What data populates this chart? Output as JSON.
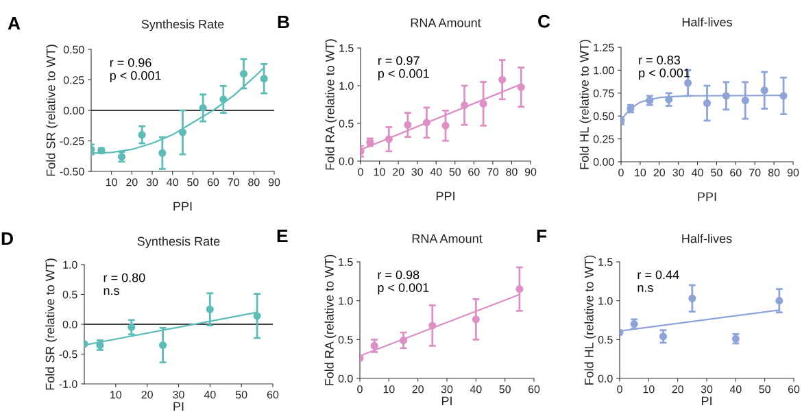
{
  "chart_data": [
    {
      "type": "scatter",
      "title": "Synthesis Rate",
      "xlabel": "PPI",
      "ylabel": "Fold SR (relative to WT)",
      "annotations": [
        "A",
        "r = 0.96",
        "p < 0.001"
      ],
      "grid": false,
      "xlim": [
        0,
        90
      ],
      "xticks": [
        10,
        20,
        30,
        40,
        50,
        60,
        70,
        80,
        90
      ],
      "ylim": [
        -0.5,
        0.5
      ],
      "yticks": [
        {
          "value": -0.5,
          "label": "-0.50"
        },
        {
          "value": -0.25,
          "label": "-0.25"
        },
        {
          "value": 0,
          "label": "0.00"
        },
        {
          "value": 0.25,
          "label": "0.25"
        },
        {
          "value": 0.5,
          "label": "0.50"
        }
      ],
      "ref_lines": [
        {
          "axis": "y",
          "value": 0,
          "color": "#000000"
        }
      ],
      "series": [
        {
          "marker": "circle",
          "color": "#5bbcb8",
          "x": [
            0,
            5,
            15,
            25,
            35,
            45,
            55,
            65,
            75,
            85
          ],
          "values": [
            -0.32,
            -0.33,
            -0.38,
            -0.2,
            -0.35,
            -0.18,
            0.02,
            0.09,
            0.3,
            0.26
          ],
          "errors": [
            0.04,
            0.02,
            0.04,
            0.07,
            0.13,
            0.18,
            0.11,
            0.11,
            0.12,
            0.12
          ]
        },
        {
          "type": "line",
          "color": "#5bbcb8",
          "line_style": "solid",
          "x": [
            0,
            10,
            20,
            30,
            40,
            50,
            60,
            70,
            80,
            85
          ],
          "values": [
            -0.35,
            -0.345,
            -0.32,
            -0.27,
            -0.2,
            -0.1,
            0.0,
            0.12,
            0.27,
            0.35
          ]
        }
      ]
    },
    {
      "type": "scatter",
      "title": "RNA Amount",
      "xlabel": "PPI",
      "ylabel": "Fold RA (relative to WT)",
      "annotations": [
        "B",
        "r = 0.97",
        "p < 0.001"
      ],
      "grid": false,
      "xlim": [
        0,
        90
      ],
      "xticks": [
        0,
        10,
        20,
        30,
        40,
        50,
        60,
        70,
        80,
        90
      ],
      "ylim": [
        0,
        1.5
      ],
      "yticks": [
        {
          "value": 0,
          "label": "0.0"
        },
        0.5,
        {
          "value": 1,
          "label": "1.0"
        },
        1.5
      ],
      "series": [
        {
          "marker": "circle",
          "color": "#dd8fc6",
          "x": [
            0,
            5,
            15,
            25,
            35,
            45,
            55,
            65,
            75,
            85
          ],
          "values": [
            0.13,
            0.25,
            0.29,
            0.48,
            0.51,
            0.47,
            0.74,
            0.76,
            1.08,
            0.98
          ],
          "errors": [
            0.07,
            0.05,
            0.16,
            0.16,
            0.2,
            0.2,
            0.26,
            0.29,
            0.26,
            0.26
          ]
        },
        {
          "type": "line",
          "color": "#dd8fc6",
          "line_style": "solid",
          "x": [
            0,
            85
          ],
          "values": [
            0.15,
            1.02
          ]
        }
      ]
    },
    {
      "type": "scatter",
      "title": "Half-lives",
      "xlabel": "PPI",
      "ylabel": "Fold HL (relative to WT)",
      "annotations": [
        "C",
        "r = 0.83",
        "p < 0.001"
      ],
      "grid": false,
      "xlim": [
        0,
        90
      ],
      "xticks": [
        0,
        10,
        20,
        30,
        40,
        50,
        60,
        70,
        80,
        90
      ],
      "ylim": [
        0,
        1.25
      ],
      "yticks": [
        {
          "value": 0,
          "label": "0.00"
        },
        0.25,
        {
          "value": 0.5,
          "label": "0.50"
        },
        0.75,
        {
          "value": 1,
          "label": "1.00"
        },
        1.25
      ],
      "series": [
        {
          "marker": "circle",
          "color": "#8ea3d8",
          "x": [
            0,
            5,
            15,
            25,
            35,
            45,
            55,
            65,
            75,
            85
          ],
          "values": [
            0.45,
            0.58,
            0.67,
            0.68,
            0.86,
            0.64,
            0.72,
            0.67,
            0.78,
            0.72
          ],
          "errors": [
            0.04,
            0.04,
            0.05,
            0.07,
            0.14,
            0.19,
            0.15,
            0.2,
            0.2,
            0.2
          ]
        },
        {
          "type": "line",
          "color": "#8ea3d8",
          "line_style": "solid",
          "x": [
            0,
            5,
            10,
            15,
            20,
            25,
            35,
            85
          ],
          "values": [
            0.46,
            0.58,
            0.65,
            0.68,
            0.7,
            0.71,
            0.72,
            0.725
          ]
        }
      ]
    },
    {
      "type": "scatter",
      "title": "Synthesis Rate",
      "xlabel": "PI",
      "ylabel": "Fold SR (relative to WT)",
      "annotations": [
        "D",
        "r = 0.80",
        "n.s"
      ],
      "grid": false,
      "xlim": [
        0,
        60
      ],
      "xticks": [
        10,
        20,
        30,
        40,
        50,
        60
      ],
      "ylim": [
        -1,
        1
      ],
      "yticks": [
        {
          "value": -1,
          "label": "-1.0"
        },
        {
          "value": -0.5,
          "label": "-0.5"
        },
        {
          "value": 0,
          "label": "0.0"
        },
        0.5,
        {
          "value": 1,
          "label": "1.0"
        }
      ],
      "ref_lines": [
        {
          "axis": "y",
          "value": 0,
          "color": "#000000"
        }
      ],
      "series": [
        {
          "marker": "circle",
          "color": "#5bbcb8",
          "x": [
            0,
            5,
            15,
            25,
            40,
            55
          ],
          "values": [
            -0.33,
            -0.35,
            -0.05,
            -0.35,
            0.25,
            0.14
          ],
          "errors": [
            null,
            0.08,
            0.12,
            0.29,
            0.27,
            0.37
          ]
        },
        {
          "type": "line",
          "color": "#5bbcb8",
          "line_style": "solid",
          "x": [
            0,
            55
          ],
          "values": [
            -0.35,
            0.2
          ]
        }
      ]
    },
    {
      "type": "scatter",
      "title": "RNA Amount",
      "xlabel": "PI",
      "ylabel": "Fold RA (relative to WT)",
      "annotations": [
        "E",
        "r = 0.98",
        "p < 0.001"
      ],
      "grid": false,
      "xlim": [
        0,
        60
      ],
      "xticks": [
        0,
        10,
        20,
        30,
        40,
        50,
        60
      ],
      "ylim": [
        0,
        1.5
      ],
      "yticks": [
        {
          "value": 0,
          "label": "0.0"
        },
        0.5,
        {
          "value": 1,
          "label": "1.0"
        },
        1.5
      ],
      "series": [
        {
          "marker": "circle",
          "color": "#dd8fc6",
          "x": [
            0,
            5,
            15,
            25,
            40,
            55
          ],
          "values": [
            0.26,
            0.42,
            0.49,
            0.68,
            0.76,
            1.15
          ],
          "errors": [
            null,
            0.08,
            0.1,
            0.26,
            0.26,
            0.28
          ]
        },
        {
          "type": "line",
          "color": "#dd8fc6",
          "line_style": "solid",
          "x": [
            0,
            55
          ],
          "values": [
            0.29,
            1.08
          ]
        }
      ]
    },
    {
      "type": "scatter",
      "title": "Half-lives",
      "xlabel": "PI",
      "ylabel": "Fold HL (relative to WT)",
      "annotations": [
        "F",
        "r = 0.44",
        "n.s"
      ],
      "grid": false,
      "xlim": [
        0,
        60
      ],
      "xticks": [
        0,
        10,
        20,
        30,
        40,
        50,
        60
      ],
      "ylim": [
        0,
        1.5
      ],
      "yticks": [
        {
          "value": 0,
          "label": "0.0"
        },
        0.5,
        {
          "value": 1,
          "label": "1.0"
        },
        1.5
      ],
      "series": [
        {
          "marker": "circle",
          "color": "#8ea3d8",
          "x": [
            0,
            5,
            15,
            25,
            40,
            55
          ],
          "values": [
            0.59,
            0.7,
            0.54,
            1.03,
            0.51,
            1.0
          ],
          "errors": [
            null,
            0.06,
            0.08,
            0.17,
            0.06,
            0.15
          ]
        },
        {
          "type": "line",
          "color": "#8ea3d8",
          "line_style": "solid",
          "x": [
            0,
            55
          ],
          "values": [
            0.61,
            0.88
          ]
        }
      ]
    }
  ]
}
